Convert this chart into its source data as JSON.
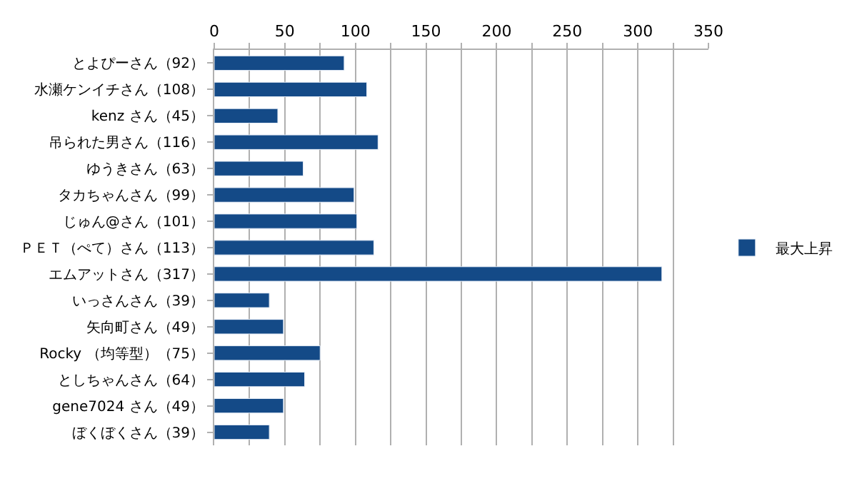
{
  "chart_data": {
    "type": "bar",
    "orientation": "horizontal",
    "categories": [
      "とよぴーさん（92）",
      "水瀬ケンイチさん（108）",
      "kenz さん（45）",
      "吊られた男さん（116）",
      "ゆうきさん（63）",
      "タカちゃんさん（99）",
      "じゅん@さん（101）",
      "ＰＥＴ（ぺて）さん（113）",
      "エムアットさん（317）",
      "いっさんさん（39）",
      "矢向町さん（49）",
      "Rocky （均等型）（75）",
      "としちゃんさん（64）",
      "gene7024 さん（49）",
      "ぼくぼくさん（39）"
    ],
    "series": [
      {
        "name": "最大上昇",
        "color": "#144a87",
        "values": [
          92,
          108,
          45,
          116,
          63,
          99,
          101,
          113,
          317,
          39,
          49,
          75,
          64,
          49,
          39
        ]
      }
    ],
    "xlim": [
      0,
      350
    ],
    "xticks": [
      0,
      {
        "value": 25,
        "label": null
      },
      50,
      {
        "value": 75,
        "label": null
      },
      100,
      {
        "value": 125,
        "label": null
      },
      150,
      {
        "value": 175,
        "label": null
      },
      200,
      {
        "value": 225,
        "label": null
      },
      250,
      {
        "value": 275,
        "label": null
      },
      300,
      {
        "value": 325,
        "label": null
      },
      350
    ],
    "grid": "x",
    "legend": "right"
  }
}
